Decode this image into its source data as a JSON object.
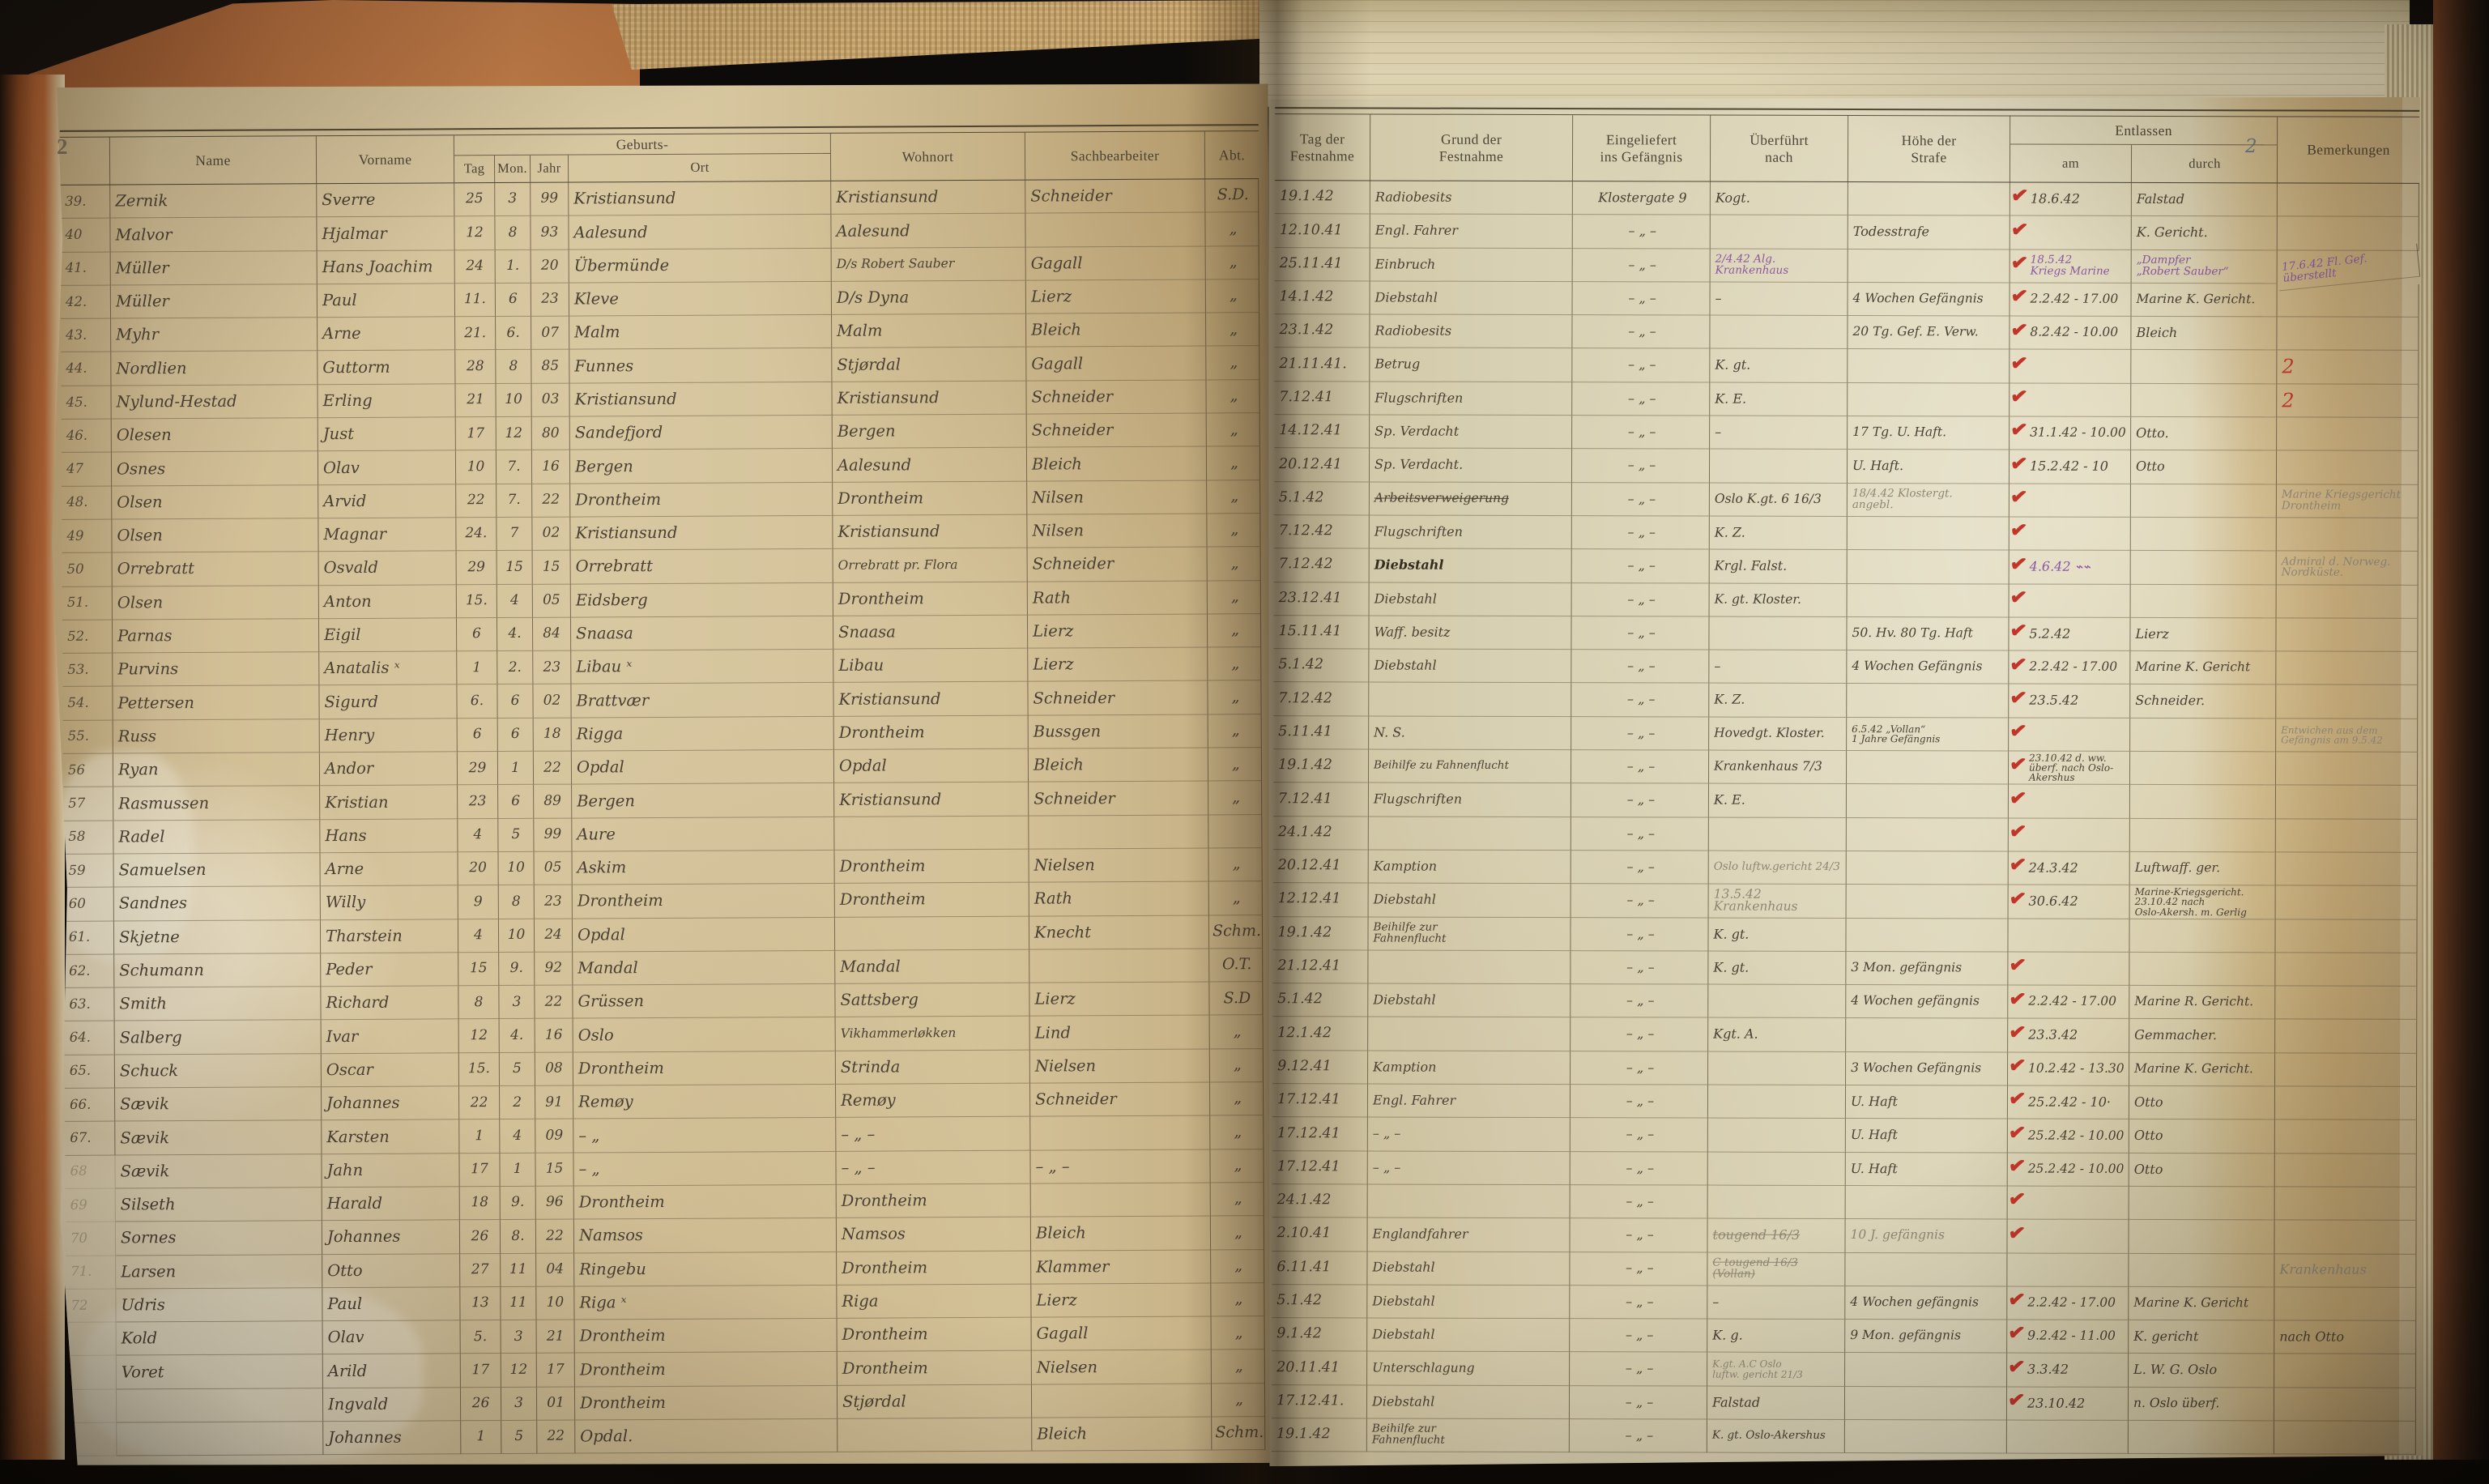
{
  "left_page": {
    "page_number": "2",
    "headers": {
      "name": "Name",
      "vorname": "Vorname",
      "geburts": "Geburts-",
      "tag": "Tag",
      "mon": "Mon.",
      "jahr": "Jahr",
      "ort": "Ort",
      "wohnort": "Wohnort",
      "sachbearbeiter": "Sachbearbeiter",
      "abt": "Abt."
    },
    "rows": [
      [
        "39.",
        "Zernik",
        "Sverre",
        "25",
        "3",
        "99",
        "Kristiansund",
        "Kristiansund",
        "Schneider",
        "S.D."
      ],
      [
        "40",
        "Malvor",
        "Hjalmar",
        "12",
        "8",
        "93",
        "Aalesund",
        "Aalesund",
        "",
        "„"
      ],
      [
        "41.",
        "Müller",
        "Hans Joachim",
        "24",
        "1.",
        "20",
        "Übermünde",
        "D/s Robert Sauber",
        "Gagall",
        "„"
      ],
      [
        "42.",
        "Müller",
        "Paul",
        "11.",
        "6",
        "23",
        "Kleve",
        "D/s Dyna",
        "Lierz",
        "„"
      ],
      [
        "43.",
        "Myhr",
        "Arne",
        "21.",
        "6.",
        "07",
        "Malm",
        "Malm",
        "Bleich",
        "„"
      ],
      [
        "44.",
        "Nordlien",
        "Guttorm",
        "28",
        "8",
        "85",
        "Funnes",
        "Stjørdal",
        "Gagall",
        "„"
      ],
      [
        "45.",
        "Nylund-Hestad",
        "Erling",
        "21",
        "10",
        "03",
        "Kristiansund",
        "Kristiansund",
        "Schneider",
        "„"
      ],
      [
        "46.",
        "Olesen",
        "Just",
        "17",
        "12",
        "80",
        "Sandefjord",
        "Bergen",
        "Schneider",
        "„"
      ],
      [
        "47",
        "Osnes",
        "Olav",
        "10",
        "7.",
        "16",
        "Bergen",
        "Aalesund",
        "Bleich",
        "„"
      ],
      [
        "48.",
        "Olsen",
        "Arvid",
        "22",
        "7.",
        "22",
        "Drontheim",
        "Drontheim",
        "Nilsen",
        "„"
      ],
      [
        "49",
        "Olsen",
        "Magnar",
        "24.",
        "7",
        "02",
        "Kristiansund",
        "Kristiansund",
        "Nilsen",
        "„"
      ],
      [
        "50",
        "Orrebratt",
        "Osvald",
        "29",
        "15",
        "15",
        "Orrebratt",
        "Orrebratt pr. Flora",
        "Schneider",
        "„"
      ],
      [
        "51.",
        "Olsen",
        "Anton",
        "15.",
        "4",
        "05",
        "Eidsberg",
        "Drontheim",
        "Rath",
        "„"
      ],
      [
        "52.",
        "Parnas",
        "Eigil",
        "6",
        "4.",
        "84",
        "Snaasa",
        "Snaasa",
        "Lierz",
        "„"
      ],
      [
        "53.",
        "Purvins",
        "Anatalis ˣ",
        "1",
        "2.",
        "23",
        "Libau ˣ",
        "Libau",
        "Lierz",
        "„"
      ],
      [
        "54.",
        "Pettersen",
        "Sigurd",
        "6.",
        "6",
        "02",
        "Brattvær",
        "Kristiansund",
        "Schneider",
        "„"
      ],
      [
        "55.",
        "Russ",
        "Henry",
        "6",
        "6",
        "18",
        "Rigga",
        "Drontheim",
        "Bussgen",
        "„"
      ],
      [
        "56",
        "Ryan",
        "Andor",
        "29",
        "1",
        "22",
        "Opdal",
        "Opdal",
        "Bleich",
        "„"
      ],
      [
        "57",
        "Rasmussen",
        "Kristian",
        "23",
        "6",
        "89",
        "Bergen",
        "Kristiansund",
        "Schneider",
        "„"
      ],
      [
        "58",
        "Radel",
        "Hans",
        "4",
        "5",
        "99",
        "Aure",
        "",
        "",
        ""
      ],
      [
        "59",
        "Samuelsen",
        "Arne",
        "20",
        "10",
        "05",
        "Askim",
        "Drontheim",
        "Nielsen",
        "„"
      ],
      [
        "60",
        "Sandnes",
        "Willy",
        "9",
        "8",
        "23",
        "Drontheim",
        "Drontheim",
        "Rath",
        "„"
      ],
      [
        "61.",
        "Skjetne",
        "Tharstein",
        "4",
        "10",
        "24",
        "Opdal",
        "",
        "Knecht",
        "Schm."
      ],
      [
        "62.",
        "Schumann",
        "Peder",
        "15",
        "9.",
        "92",
        "Mandal",
        "Mandal",
        "",
        "O.T."
      ],
      [
        "63.",
        "Smith",
        "Richard",
        "8",
        "3",
        "22",
        "Grüssen",
        "Sattsberg",
        "Lierz",
        "S.D"
      ],
      [
        "64.",
        "Salberg",
        "Ivar",
        "12",
        "4.",
        "16",
        "Oslo",
        "Vikhammerløkken",
        "Lind",
        "„"
      ],
      [
        "65.",
        "Schuck",
        "Oscar",
        "15.",
        "5",
        "08",
        "Drontheim",
        "Strinda",
        "Nielsen",
        "„"
      ],
      [
        "66.",
        "Sævik",
        "Johannes",
        "22",
        "2",
        "91",
        "Remøy",
        "Remøy",
        "Schneider",
        "„"
      ],
      [
        "67.",
        "Sævik",
        "Karsten",
        "1",
        "4",
        "09",
        "– „",
        "– „ –",
        "",
        "„"
      ],
      [
        "68",
        "Sævik",
        "Jahn",
        "17",
        "1",
        "15",
        "– „",
        "– „ –",
        "– „ –",
        "„"
      ],
      [
        "69",
        "Silseth",
        "Harald",
        "18",
        "9.",
        "96",
        "Drontheim",
        "Drontheim",
        "",
        "„"
      ],
      [
        "70",
        "Sornes",
        "Johannes",
        "26",
        "8.",
        "22",
        "Namsos",
        "Namsos",
        "Bleich",
        "„"
      ],
      [
        "71.",
        "Larsen",
        "Otto",
        "27",
        "11",
        "04",
        "Ringebu",
        "Drontheim",
        "Klammer",
        "„"
      ],
      [
        "72",
        "Udris",
        "Paul",
        "13",
        "11",
        "10",
        "Riga ˣ",
        "Riga",
        "Lierz",
        "„"
      ],
      [
        "",
        "Kold",
        "Olav",
        "5.",
        "3",
        "21",
        "Drontheim",
        "Drontheim",
        "Gagall",
        "„"
      ],
      [
        "",
        "Voret",
        "Arild",
        "17",
        "12",
        "17",
        "Drontheim",
        "Drontheim",
        "Nielsen",
        "„"
      ],
      [
        "",
        "",
        "Ingvald",
        "26",
        "3",
        "01",
        "Drontheim",
        "Stjørdal",
        "",
        "„"
      ],
      [
        "",
        "",
        "Johannes",
        "1",
        "5",
        "22",
        "Opdal.",
        "",
        "Bleich",
        "Schm."
      ]
    ]
  },
  "right_page": {
    "page_number": "2",
    "headers": {
      "tag_der_festnahme": "Tag der\nFestnahme",
      "grund_der_festnahme": "Grund der\nFestnahme",
      "eingeliefert": "Eingeliefert\nins Gefängnis",
      "ueberfuehrt": "Überführt\nnach",
      "hoehe": "Höhe der\nStrafe",
      "entlassen": "Entlassen",
      "am": "am",
      "durch": "durch",
      "bemerkungen": "Bemerkungen"
    },
    "rows": [
      [
        "19.1.42",
        "Radiobesits",
        "Klostergate 9",
        "Kogt.",
        "",
        1,
        "18.6.42",
        "Falstad",
        ""
      ],
      [
        "12.10.41",
        "Engl. Fahrer",
        "– „ –",
        "",
        "Todesstrafe",
        1,
        "",
        "K. Gericht.",
        ""
      ],
      [
        "25.11.41",
        "Einbruch",
        "– „ –",
        "2/4.42 Alg.\nKrankenhaus",
        "",
        1,
        "18.5.42\nKriegs Marine",
        "„Dampfer\n„Robert Sauber“",
        "17.6.42 Fl. Gef.\nüberstellt"
      ],
      [
        "14.1.42",
        "Diebstahl",
        "– „ –",
        "–",
        "4 Wochen Gefängnis",
        1,
        "2.2.42 - 17.00",
        "Marine K. Gericht.",
        ""
      ],
      [
        "23.1.42",
        "Radiobesits",
        "– „ –",
        "",
        "20 Tg. Gef. E. Verw.",
        1,
        "8.2.42 - 10.00",
        "Bleich",
        ""
      ],
      [
        "21.11.41.",
        "Betrug",
        "– „ –",
        "K. gt.",
        "",
        1,
        "",
        "",
        "2"
      ],
      [
        "7.12.41",
        "Flugschriften",
        "– „ –",
        "K. E.",
        "",
        1,
        "",
        "",
        "2"
      ],
      [
        "14.12.41",
        "Sp. Verdacht",
        "– „ –",
        "–",
        "17 Tg. U. Haft.",
        1,
        "31.1.42 - 10.00",
        "Otto.",
        ""
      ],
      [
        "20.12.41",
        "Sp. Verdacht.",
        "– „ –",
        "",
        "U. Haft.",
        1,
        "15.2.42 - 10",
        "Otto",
        ""
      ],
      [
        "5.1.42",
        "Arbeitsverweigerung",
        "– „ –",
        "Oslo K.gt. 6  16/3",
        "18/4.42 Klostergt.\nangebl.",
        1,
        "",
        "",
        "Marine Kriegsgericht\nDrontheim"
      ],
      [
        "7.12.42",
        "Flugschriften",
        "– „ –",
        "K. Z.",
        "",
        1,
        "",
        "",
        ""
      ],
      [
        "7.12.42",
        "Diebstahl",
        "– „ –",
        "Krgl. Falst.",
        "",
        1,
        "4.6.42   ⌁⌁",
        "",
        "Admiral d. Norweg.\nNordküste."
      ],
      [
        "23.12.41",
        "Diebstahl",
        "– „ –",
        "K. gt. Kloster.",
        "",
        1,
        "",
        "",
        ""
      ],
      [
        "15.11.41",
        "Waff. besitz",
        "– „ –",
        "",
        "50. Hv. 80 Tg. Haft",
        1,
        "5.2.42",
        "Lierz",
        ""
      ],
      [
        "5.1.42",
        "Diebstahl",
        "– „ –",
        "–",
        "4 Wochen Gefängnis",
        1,
        "2.2.42 - 17.00",
        "Marine K. Gericht",
        ""
      ],
      [
        "7.12.42",
        "",
        "– „ –",
        "K. Z.",
        "",
        1,
        "23.5.42",
        "Schneider.",
        ""
      ],
      [
        "5.11.41",
        "N. S.",
        "– „ –",
        "Hovedgt. Kloster.",
        "6.5.42 „Vollan“\n1 Jahre Gefängnis",
        1,
        "",
        "",
        "Entwichen aus dem\nGefängnis am 9.5.42"
      ],
      [
        "19.1.42",
        "Beihilfe zu Fahnenflucht",
        "– „ –",
        "Krankenhaus 7/3",
        "",
        1,
        "23.10.42 d. ww. überf. nach Oslo-Akershus",
        "",
        ""
      ],
      [
        "7.12.41",
        "Flugschriften",
        "– „ –",
        "K. E.",
        "",
        1,
        "",
        "",
        ""
      ],
      [
        "24.1.42",
        "",
        "– „ –",
        "",
        "",
        1,
        "",
        "",
        ""
      ],
      [
        "20.12.41",
        "Kamption",
        "– „ –",
        "Oslo luftw.gericht 24/3",
        "",
        1,
        "24.3.42",
        "Luftwaff. ger.",
        ""
      ],
      [
        "12.12.41",
        "Diebstahl",
        "– „ –",
        "13.5.42 Krankenhaus",
        "",
        1,
        "30.6.42",
        "Marine-Kriegsgericht.\n23.10.42 nach\nOslo-Akersh. m. Gerlig",
        ""
      ],
      [
        "19.1.42",
        "Beihilfe zur\nFahnenflucht",
        "– „ –",
        "K. gt.",
        "",
        0,
        "",
        "",
        ""
      ],
      [
        "21.12.41",
        "",
        "– „ –",
        "K. gt.",
        "3 Mon. gefängnis",
        1,
        "",
        "",
        ""
      ],
      [
        "5.1.42",
        "Diebstahl",
        "– „ –",
        "",
        "4 Wochen gefängnis",
        1,
        "2.2.42 - 17.00",
        "Marine R. Gericht.",
        ""
      ],
      [
        "12.1.42",
        "",
        "– „ –",
        "Kgt. A.",
        "",
        1,
        "23.3.42",
        "Gemmacher.",
        ""
      ],
      [
        "9.12.41",
        "Kamption",
        "– „ –",
        "",
        "3 Wochen Gefängnis",
        1,
        "10.2.42 - 13.30",
        "Marine K. Gericht.",
        ""
      ],
      [
        "17.12.41",
        "Engl. Fahrer",
        "– „ –",
        "",
        "U. Haft",
        1,
        "25.2.42 - 10·",
        "Otto",
        ""
      ],
      [
        "17.12.41",
        "– „ –",
        "– „ –",
        "",
        "U. Haft",
        1,
        "25.2.42 - 10.00",
        "Otto",
        ""
      ],
      [
        "17.12.41",
        "– „ –",
        "– „ –",
        "",
        "U. Haft",
        1,
        "25.2.42 - 10.00",
        "Otto",
        ""
      ],
      [
        "24.1.42",
        "",
        "– „ –",
        "",
        "",
        1,
        "",
        "",
        ""
      ],
      [
        "2.10.41",
        "Englandfahrer",
        "– „ –",
        "tougend 16/3",
        "10 J. gefängnis",
        1,
        "",
        "",
        ""
      ],
      [
        "6.11.41",
        "Diebstahl",
        "– „ –",
        "C  tougend 16/3 (Vollan)",
        "",
        0,
        "",
        "",
        "Krankenhaus"
      ],
      [
        "5.1.42",
        "Diebstahl",
        "– „ –",
        "–",
        "4 Wochen gefängnis",
        1,
        "2.2.42 - 17.00",
        "Marine K. Gericht",
        ""
      ],
      [
        "9.1.42",
        "Diebstahl",
        "– „ –",
        "K. g.",
        "9 Mon. gefängnis",
        1,
        "9.2.42 - 11.00",
        "K. gericht",
        "nach Otto"
      ],
      [
        "20.11.41",
        "Unterschlagung",
        "– „ –",
        "K.gt. A.C  Oslo\nluftw. gericht 21/3",
        "",
        1,
        "3.3.42",
        "L. W. G. Oslo",
        ""
      ],
      [
        "17.12.41.",
        "Diebstahl",
        "– „ –",
        "Falstad",
        "",
        1,
        "23.10.42",
        "n. Oslo überf.",
        ""
      ],
      [
        "19.1.42",
        "Beihilfe zur\nFahnenflucht",
        "– „ –",
        "K. gt.  Oslo-Akershus",
        "",
        0,
        "",
        "",
        ""
      ]
    ],
    "row_styles": {
      "2": {
        "ueberfuehrt": "purple",
        "am": "purple",
        "durch": "purple",
        "bemerkung": "purple tilt"
      },
      "5": {
        "bemerkung": "red big"
      },
      "6": {
        "bemerkung": "red big"
      },
      "9": {
        "grund": "strike",
        "hoehe": "pencil",
        "bemerkung": "pencil"
      },
      "11": {
        "grund": "bold",
        "am": "purple",
        "bemerkung": "pencil"
      },
      "16": {
        "bemerkung": "pencil"
      },
      "20": {
        "ueberfuehrt": "pencil"
      },
      "21": {
        "ueberfuehrt": "pencil"
      },
      "31": {
        "ueberfuehrt": "pencil strike",
        "hoehe": "pencil"
      },
      "32": {
        "ueberfuehrt": "pencil strike",
        "bemerkung": "pencil"
      },
      "35": {
        "ueberfuehrt": "pencil"
      }
    },
    "check_color": "#c2362a",
    "ink_color": "#4a4033",
    "purple_color": "#8a58a0",
    "pencil_color": "#8f8774"
  }
}
